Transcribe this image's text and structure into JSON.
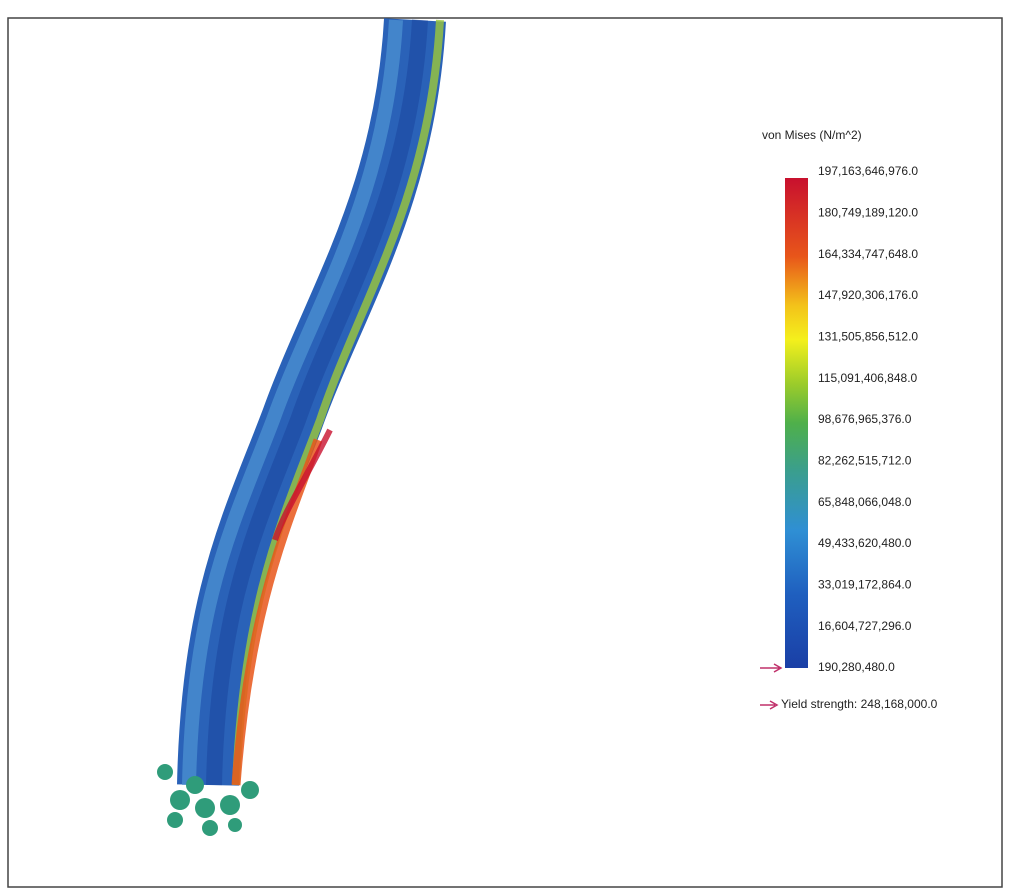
{
  "legend": {
    "title": "von Mises (N/m^2)",
    "labels": [
      "197,163,646,976.0",
      "180,749,189,120.0",
      "164,334,747,648.0",
      "147,920,306,176.0",
      "131,505,856,512.0",
      "115,091,406,848.0",
      "98,676,965,376.0",
      "82,262,515,712.0",
      "65,848,066,048.0",
      "49,433,620,480.0",
      "33,019,172,864.0",
      "16,604,727,296.0",
      "190,280,480.0"
    ],
    "yield": "Yield strength: 248,168,000.0"
  }
}
